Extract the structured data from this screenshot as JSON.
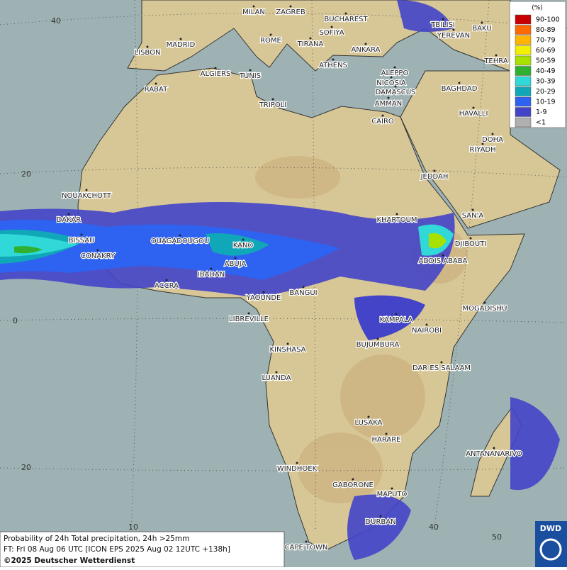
{
  "legend": {
    "unit": "(%)",
    "classes": [
      {
        "label": "90-100",
        "color": "#c80000"
      },
      {
        "label": "80-89",
        "color": "#ff6a00"
      },
      {
        "label": "70-79",
        "color": "#ffb400"
      },
      {
        "label": "60-69",
        "color": "#f0f000"
      },
      {
        "label": "50-59",
        "color": "#a8e000"
      },
      {
        "label": "40-49",
        "color": "#30b030"
      },
      {
        "label": "30-39",
        "color": "#30d8d8"
      },
      {
        "label": "20-29",
        "color": "#10a8b8"
      },
      {
        "label": "10-19",
        "color": "#2e62f0"
      },
      {
        "label": "1-9",
        "color": "#4444c8"
      },
      {
        "label": "<1",
        "color": "#b0b0b0"
      }
    ]
  },
  "cities": [
    "MILAN",
    "ZAGREB",
    "BUCHAREST",
    "TBILISI",
    "BAKU",
    "YEREVAN",
    "MADRID",
    "ROME",
    "SOFIYA",
    "TIRANA",
    "ANKARA",
    "TEHRA",
    "LISBON",
    "ATHENS",
    "ALGIERS",
    "TUNIS",
    "ALEPPO",
    "RABAT",
    "NICOSIA",
    "BAGHDAD",
    "DAMASCUS",
    "TRIPOLI",
    "AMMAN",
    "HAVALLI",
    "CAIRO",
    "DOHA",
    "RIYADH",
    "NOUAKCHOTT",
    "JEDDAH",
    "DAKAR",
    "SAN'A",
    "KHARTOUM",
    "BISSAU",
    "OUAGADOUGOU",
    "KANO",
    "DJIBOUTI",
    "CONAKRY",
    "ABUJA",
    "ADDIS ABABA",
    "IBADAN",
    "ACCRA",
    "YAOUNDE",
    "BANGUI",
    "MOGADISHU",
    "LIBREVILLE",
    "KAMPALA",
    "NAIROBI",
    "BUJUMBURA",
    "KINSHASA",
    "DAR ES SALAAM",
    "LUANDA",
    "LUSAKA",
    "HARARE",
    "ANTANANARIVO",
    "WINDHOEK",
    "GABORONE",
    "MAPUTO",
    "DURBAN",
    "CAPE TOWN"
  ],
  "graticule_labels": [
    "40",
    "20",
    "0",
    "20",
    "10",
    "40",
    "50"
  ],
  "caption": [
    "Probability of 24h Total precipitation, 24h >25mm",
    "FT: Fri 08 Aug 06 UTC [ICON EPS 2025 Aug 02 12UTC +138h]",
    "©2025 Deutscher Wetterdienst"
  ],
  "logo": "DWD"
}
